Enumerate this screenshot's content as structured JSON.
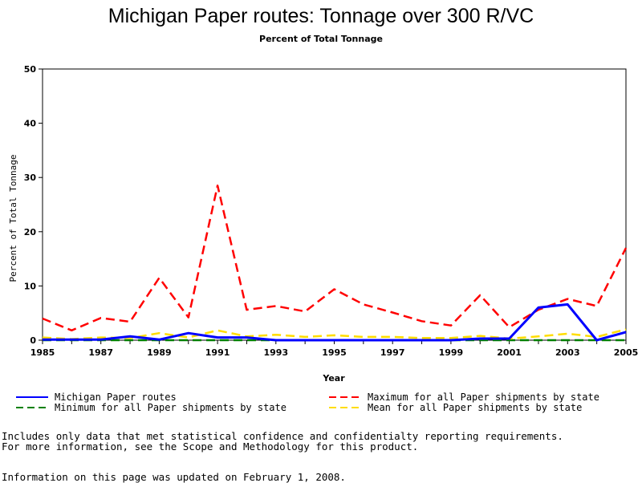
{
  "chart_data": {
    "type": "line",
    "title": "Michigan Paper routes: Tonnage over 300 R/VC",
    "subtitle": "Percent of Total Tonnage",
    "xlabel": "Year",
    "ylabel": "Percent of Total Tonnage",
    "xlim": [
      1985,
      2005
    ],
    "ylim": [
      0,
      50
    ],
    "xticks": [
      "1985",
      "1987",
      "1989",
      "1991",
      "1993",
      "1995",
      "1997",
      "1999",
      "2001",
      "2003",
      "2005"
    ],
    "yticks": [
      "0",
      "10",
      "20",
      "30",
      "40",
      "50"
    ],
    "grid": false,
    "x": [
      1985,
      1986,
      1987,
      1988,
      1989,
      1990,
      1991,
      1992,
      1993,
      1994,
      1995,
      1996,
      1997,
      1998,
      1999,
      2000,
      2001,
      2002,
      2003,
      2004,
      2005
    ],
    "series": [
      {
        "name": "Michigan Paper routes",
        "color": "#0000ff",
        "dash": "solid",
        "values": [
          0.1,
          0.1,
          0.1,
          0.7,
          0.1,
          1.3,
          0.5,
          0.5,
          0.0,
          0.0,
          0.0,
          0.0,
          0.0,
          0.0,
          0.0,
          0.3,
          0.3,
          6.0,
          6.6,
          0.0,
          1.5
        ]
      },
      {
        "name": "Maximum for all Paper shipments by state",
        "color": "#ff0000",
        "dash": "long",
        "values": [
          4.0,
          1.8,
          4.1,
          3.4,
          11.5,
          4.2,
          28.5,
          5.6,
          6.3,
          5.3,
          9.4,
          6.6,
          5.1,
          3.5,
          2.7,
          8.3,
          2.4,
          5.6,
          7.6,
          6.3,
          17.0
        ]
      },
      {
        "name": "Minimum for all Paper shipments by state",
        "color": "#008000",
        "dash": "long",
        "values": [
          0.0,
          0.0,
          0.0,
          0.0,
          0.0,
          0.0,
          0.0,
          0.0,
          0.0,
          0.0,
          0.0,
          0.0,
          0.0,
          0.0,
          0.0,
          0.0,
          0.0,
          0.0,
          0.0,
          0.0,
          0.0
        ]
      },
      {
        "name": "Mean for all Paper shipments by state",
        "color": "#ffdd00",
        "dash": "long",
        "values": [
          0.5,
          0.2,
          0.5,
          0.4,
          1.3,
          0.5,
          1.8,
          0.7,
          1.0,
          0.6,
          0.9,
          0.6,
          0.6,
          0.4,
          0.4,
          0.8,
          0.3,
          0.7,
          1.2,
          0.6,
          2.0
        ]
      }
    ]
  },
  "legend": [
    {
      "label": "Michigan Paper routes",
      "color": "#0000ff",
      "dash": "solid"
    },
    {
      "label": "Maximum for all Paper shipments by state",
      "color": "#ff0000",
      "dash": "long"
    },
    {
      "label": "Minimum for all Paper shipments by state",
      "color": "#008000",
      "dash": "long"
    },
    {
      "label": "Mean for all Paper shipments by state",
      "color": "#ffdd00",
      "dash": "long"
    }
  ],
  "notes": {
    "line1": "Includes only data that met statistical confidence and confidentialty reporting requirements.",
    "line2": "For more information, see the Scope and Methodology for this product.",
    "updated": "Information on this page was updated on February 1, 2008."
  }
}
